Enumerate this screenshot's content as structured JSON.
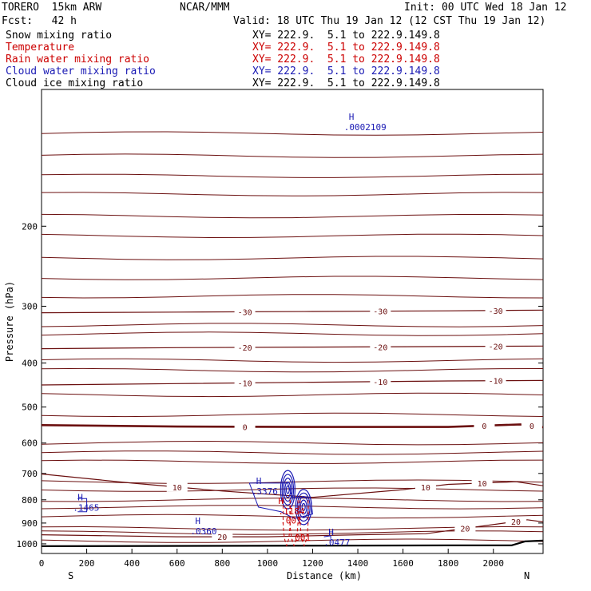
{
  "header": {
    "model": "TORERO  15km ARW",
    "center": "NCAR/MMM",
    "init": "Init: 00 UTC Wed 18 Jan 12",
    "fcst": "Fcst:   42 h",
    "valid": "Valid: 18 UTC Thu 19 Jan 12 (12 CST Thu 19 Jan 12)"
  },
  "legend": [
    {
      "label": "Snow mixing ratio",
      "xy": "XY= 222.9.  5.1 to 222.9.149.8",
      "color": "#000000"
    },
    {
      "label": "Temperature",
      "xy": "XY= 222.9.  5.1 to 222.9.149.8",
      "color": "#cc0000"
    },
    {
      "label": "Rain water mixing ratio",
      "xy": "XY= 222.9.  5.1 to 222.9.149.8",
      "color": "#cc0000"
    },
    {
      "label": "Cloud water mixing ratio",
      "xy": "XY= 222.9.  5.1 to 222.9.149.8",
      "color": "#1a1ab4"
    },
    {
      "label": "Cloud ice mixing ratio",
      "xy": "XY= 222.9.  5.1 to 222.9.149.8",
      "color": "#000000"
    }
  ],
  "chart_data": {
    "type": "contour",
    "xlabel": "Distance (km)",
    "ylabel": "Pressure (hPa)",
    "xlim": [
      0,
      2220
    ],
    "ylim": [
      1050,
      100
    ],
    "y_scale": "log",
    "x_ticks": [
      "0",
      "200",
      "400",
      "600",
      "800",
      "1000",
      "1200",
      "1400",
      "1600",
      "1800",
      "2000"
    ],
    "y_ticks": [
      "200",
      "300",
      "400",
      "500",
      "600",
      "700",
      "800",
      "900",
      "1000"
    ],
    "x_end_labels": {
      "left": "S",
      "right": "N"
    },
    "temperature_isotherms": [
      {
        "value": "0",
        "points": [
          [
            0,
            548
          ],
          [
            600,
            552
          ],
          [
            1200,
            553
          ],
          [
            1800,
            553
          ],
          [
            2120,
            546
          ],
          [
            2220,
            554
          ]
        ]
      },
      {
        "value": "-10",
        "points": [
          [
            0,
            447
          ],
          [
            600,
            444
          ],
          [
            1200,
            441
          ],
          [
            1800,
            438
          ],
          [
            2220,
            437
          ]
        ]
      },
      {
        "value": "-20",
        "points": [
          [
            0,
            372
          ],
          [
            600,
            370
          ],
          [
            1200,
            369
          ],
          [
            1800,
            368
          ],
          [
            2220,
            367
          ]
        ]
      },
      {
        "value": "-30",
        "points": [
          [
            0,
            310
          ],
          [
            600,
            309
          ],
          [
            1200,
            308
          ],
          [
            1800,
            307
          ],
          [
            2220,
            306
          ]
        ]
      },
      {
        "value": "10",
        "points": [
          [
            0,
            702
          ],
          [
            400,
            735
          ],
          [
            800,
            765
          ],
          [
            1200,
            790
          ],
          [
            1600,
            760
          ],
          [
            1800,
            740
          ],
          [
            2100,
            730
          ],
          [
            2220,
            745
          ]
        ]
      },
      {
        "value": "20",
        "points": [
          [
            0,
            955
          ],
          [
            600,
            965
          ],
          [
            1000,
            965
          ],
          [
            1400,
            955
          ],
          [
            1700,
            950
          ],
          [
            2050,
            900
          ],
          [
            2150,
            885
          ],
          [
            2220,
            895
          ]
        ]
      }
    ],
    "cloud_water_maxima": [
      {
        "label": "H",
        "value": ".1465",
        "x": 160,
        "p": 825
      },
      {
        "label": "H",
        "value": ".3376",
        "x": 950,
        "p": 760
      },
      {
        "label": "H",
        "value": ".0360",
        "x": 680,
        "p": 930
      },
      {
        "label": "H",
        "value": ".0477",
        "x": 1270,
        "p": 985
      },
      {
        "label": "H",
        "value": ".0002109",
        "x": 1360,
        "p": 120
      }
    ],
    "rain_water_maxima": [
      {
        "label": "H",
        "value": ".1184",
        "x": 1090,
        "p": 840
      },
      {
        "label": "",
        "value": ".001",
        "x": 1100,
        "p": 880
      },
      {
        "label": "",
        "value": ".001",
        "x": 1140,
        "p": 960
      }
    ],
    "surface_pressure_hPa": 1012
  }
}
